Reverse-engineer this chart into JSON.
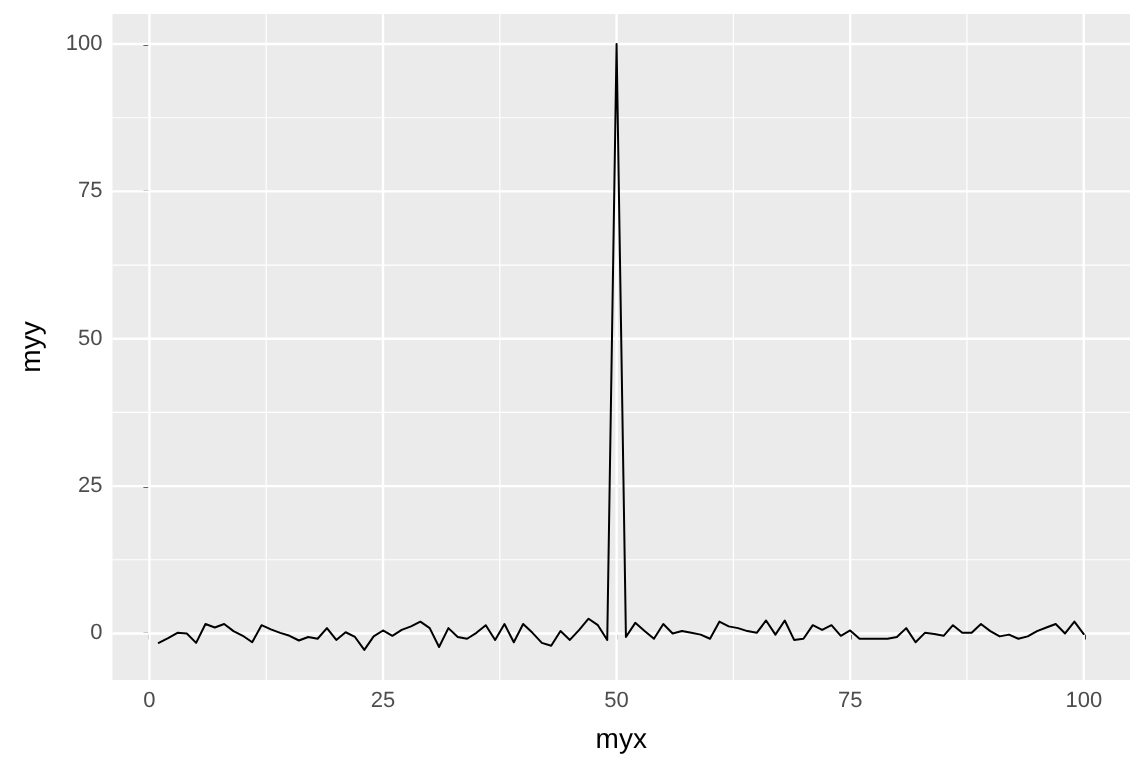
{
  "chart_data": {
    "type": "line",
    "xlabel": "myx",
    "ylabel": "myy",
    "x": [
      1,
      2,
      3,
      4,
      5,
      6,
      7,
      8,
      9,
      10,
      11,
      12,
      13,
      14,
      15,
      16,
      17,
      18,
      19,
      20,
      21,
      22,
      23,
      24,
      25,
      26,
      27,
      28,
      29,
      30,
      31,
      32,
      33,
      34,
      35,
      36,
      37,
      38,
      39,
      40,
      41,
      42,
      43,
      44,
      45,
      46,
      47,
      48,
      49,
      50,
      51,
      52,
      53,
      54,
      55,
      56,
      57,
      58,
      59,
      60,
      61,
      62,
      63,
      64,
      65,
      66,
      67,
      68,
      69,
      70,
      71,
      72,
      73,
      74,
      75,
      76,
      77,
      78,
      79,
      80,
      81,
      82,
      83,
      84,
      85,
      86,
      87,
      88,
      89,
      90,
      91,
      92,
      93,
      94,
      95,
      96,
      97,
      98,
      99,
      100
    ],
    "series": [
      {
        "color": "#000000",
        "values": [
          -1.6,
          -0.8,
          0.1,
          0,
          -1.6,
          1.6,
          1.0,
          1.6,
          0.4,
          -0.4,
          -1.5,
          1.4,
          0.7,
          0.1,
          -0.4,
          -1.2,
          -0.6,
          -0.9,
          0.9,
          -1.1,
          0.2,
          -0.6,
          -2.8,
          -0.5,
          0.5,
          -0.4,
          0.6,
          1.2,
          2.0,
          0.9,
          -2.3,
          0.9,
          -0.6,
          -0.9,
          0.1,
          1.4,
          -1.1,
          1.6,
          -1.5,
          1.6,
          0.1,
          -1.6,
          -2.1,
          0.4,
          -1.1,
          0.6,
          2.5,
          1.4,
          -1.1,
          100,
          -0.6,
          1.8,
          0.4,
          -0.9,
          1.6,
          0,
          0.4,
          0.1,
          -0.2,
          -0.9,
          2.0,
          1.2,
          0.9,
          0.4,
          0.1,
          2.2,
          -0.2,
          2.2,
          -1.1,
          -0.9,
          1.4,
          0.6,
          1.4,
          -0.4,
          0.5,
          -0.9,
          -0.9,
          -0.9,
          -0.9,
          -0.6,
          0.9,
          -1.5,
          0.1,
          -0.1,
          -0.4,
          1.4,
          0.1,
          0.1,
          1.6,
          0.4,
          -0.5,
          -0.2,
          -0.9,
          -0.5,
          0.4,
          1.0,
          1.6,
          0,
          2.0,
          -0.1
        ]
      }
    ],
    "xlim": [
      -3.95,
      104.95
    ],
    "ylim": [
      -7.9,
      105.1
    ],
    "xticks": [
      0,
      25,
      50,
      75,
      100
    ],
    "yticks": [
      0,
      25,
      50,
      75,
      100
    ],
    "grid": true,
    "marker": "none",
    "line_style": "solid"
  }
}
